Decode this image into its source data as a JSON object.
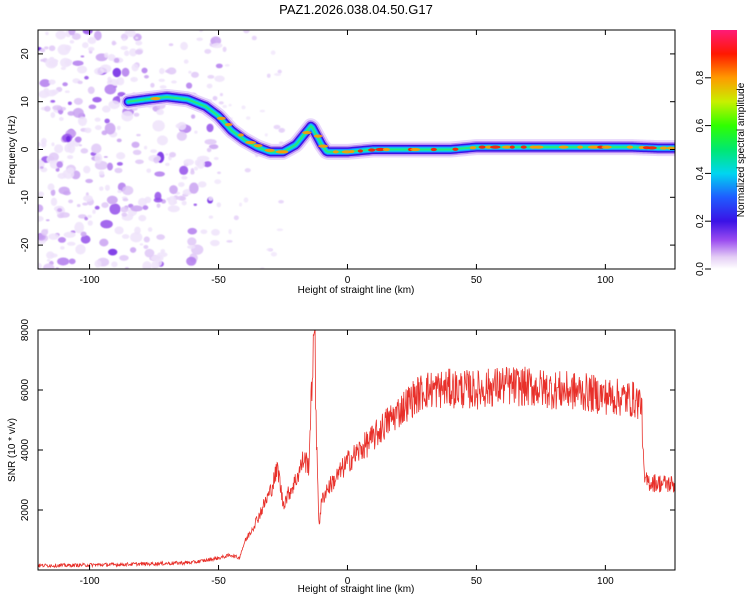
{
  "title": "PAZ1.2026.038.04.50.G17",
  "colors": {
    "snr_line": "#e8302a",
    "axes": "#000000",
    "background": "#ffffff"
  },
  "chart_data": [
    {
      "type": "heatmap",
      "xlabel": "Height of straight line (km)",
      "ylabel": "Frequency (Hz)",
      "xlim": [
        -120,
        127
      ],
      "ylim": [
        -25,
        25
      ],
      "xticks": [
        -100,
        -50,
        0,
        50,
        100
      ],
      "xtick_labels": [
        "-100",
        "-50",
        "0",
        "50",
        "100"
      ],
      "yticks": [
        -20,
        -10,
        0,
        10,
        20
      ],
      "ytick_labels": [
        "-20",
        "-10",
        "0",
        "10",
        "20"
      ],
      "colorbar": {
        "label": "Normalized spectral amplitude",
        "range": [
          0,
          1
        ],
        "ticks": [
          0.0,
          0.2,
          0.4,
          0.6,
          0.8
        ],
        "tick_labels": [
          "0.0",
          "0.2",
          "0.4",
          "0.6",
          "0.8"
        ],
        "colormap": "rainbow (white-violet-blue-cyan-green-yellow-orange-red-pink)"
      },
      "ridge": {
        "description_points_x": [
          -85,
          -78,
          -70,
          -62,
          -55,
          -50,
          -45,
          -40,
          -35,
          -30,
          -25,
          -20,
          -17,
          -14,
          -12,
          -10,
          -8,
          -5,
          0,
          10,
          20,
          30,
          40,
          50,
          60,
          70,
          80,
          90,
          100,
          110,
          120,
          127
        ],
        "frequency": [
          10,
          10.5,
          11,
          10.5,
          9,
          7,
          4,
          2,
          0.5,
          -0.5,
          -0.5,
          1,
          3,
          5,
          3,
          1,
          -0.5,
          -0.5,
          -0.5,
          0,
          0,
          0,
          0,
          0.5,
          0.5,
          0.5,
          0.5,
          0.5,
          0.5,
          0.5,
          0.3,
          0.3
        ]
      },
      "noise_region_x": [
        -120,
        -55
      ]
    },
    {
      "type": "line",
      "xlabel": "Height of straight line (km)",
      "ylabel": "SNR (10 * v/v)",
      "xlim": [
        -120,
        127
      ],
      "ylim": [
        0,
        8000
      ],
      "xticks": [
        -100,
        -50,
        0,
        50,
        100
      ],
      "xtick_labels": [
        "-100",
        "-50",
        "0",
        "50",
        "100"
      ],
      "yticks": [
        2000,
        4000,
        6000,
        8000
      ],
      "ytick_labels": [
        "2000",
        "4000",
        "6000",
        "8000"
      ],
      "series": [
        {
          "x": [
            -120,
            -110,
            -100,
            -90,
            -80,
            -70,
            -60,
            -55,
            -50,
            -45,
            -42,
            -40,
            -35,
            -30,
            -27,
            -25,
            -20,
            -17,
            -15,
            -13,
            -12,
            -11,
            -10,
            -8,
            -5,
            0,
            5,
            10,
            15,
            20,
            25,
            30,
            40,
            50,
            60,
            70,
            80,
            90,
            100,
            110,
            114,
            115,
            116,
            120,
            127
          ],
          "y": [
            150,
            150,
            170,
            180,
            200,
            220,
            250,
            320,
            400,
            500,
            400,
            900,
            1700,
            2600,
            3400,
            2200,
            3000,
            3700,
            3500,
            8000,
            4200,
            1500,
            2300,
            2700,
            3000,
            3600,
            4000,
            4400,
            4900,
            5300,
            5700,
            6000,
            6050,
            6000,
            6150,
            6100,
            6000,
            5950,
            5800,
            5700,
            5600,
            3000,
            2950,
            2900,
            2850
          ]
        }
      ]
    }
  ]
}
